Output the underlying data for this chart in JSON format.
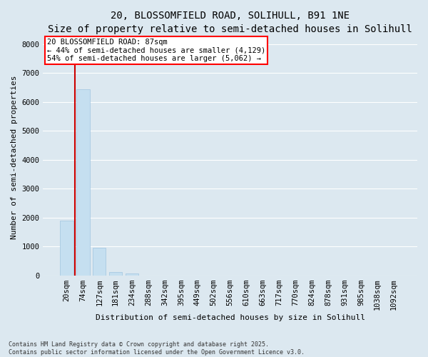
{
  "title_line1": "20, BLOSSOMFIELD ROAD, SOLIHULL, B91 1NE",
  "title_line2": "Size of property relative to semi-detached houses in Solihull",
  "xlabel": "Distribution of semi-detached houses by size in Solihull",
  "ylabel": "Number of semi-detached properties",
  "footnote_line1": "Contains HM Land Registry data © Crown copyright and database right 2025.",
  "footnote_line2": "Contains public sector information licensed under the Open Government Licence v3.0.",
  "annotation_title": "20 BLOSSOMFIELD ROAD: 87sqm",
  "annotation_line1": "← 44% of semi-detached houses are smaller (4,129)",
  "annotation_line2": "54% of semi-detached houses are larger (5,062) →",
  "bar_color": "#c5dff0",
  "bar_edge_color": "#a0c4e0",
  "vline_color": "#cc0000",
  "vline_x": 0.5,
  "categories": [
    "20sqm",
    "74sqm",
    "127sqm",
    "181sqm",
    "234sqm",
    "288sqm",
    "342sqm",
    "395sqm",
    "449sqm",
    "502sqm",
    "556sqm",
    "610sqm",
    "663sqm",
    "717sqm",
    "770sqm",
    "824sqm",
    "878sqm",
    "931sqm",
    "985sqm",
    "1038sqm",
    "1092sqm"
  ],
  "values": [
    1900,
    6430,
    960,
    130,
    70,
    0,
    0,
    0,
    0,
    0,
    0,
    0,
    0,
    0,
    0,
    0,
    0,
    0,
    0,
    0,
    0
  ],
  "ylim": [
    0,
    8200
  ],
  "yticks": [
    0,
    1000,
    2000,
    3000,
    4000,
    5000,
    6000,
    7000,
    8000
  ],
  "background_color": "#dce8f0",
  "plot_bg_color": "#dce8f0",
  "grid_color": "#ffffff",
  "title_fontsize": 10,
  "subtitle_fontsize": 9,
  "axis_label_fontsize": 8,
  "tick_fontsize": 7.5,
  "footnote_fontsize": 6,
  "annotation_fontsize": 7.5
}
